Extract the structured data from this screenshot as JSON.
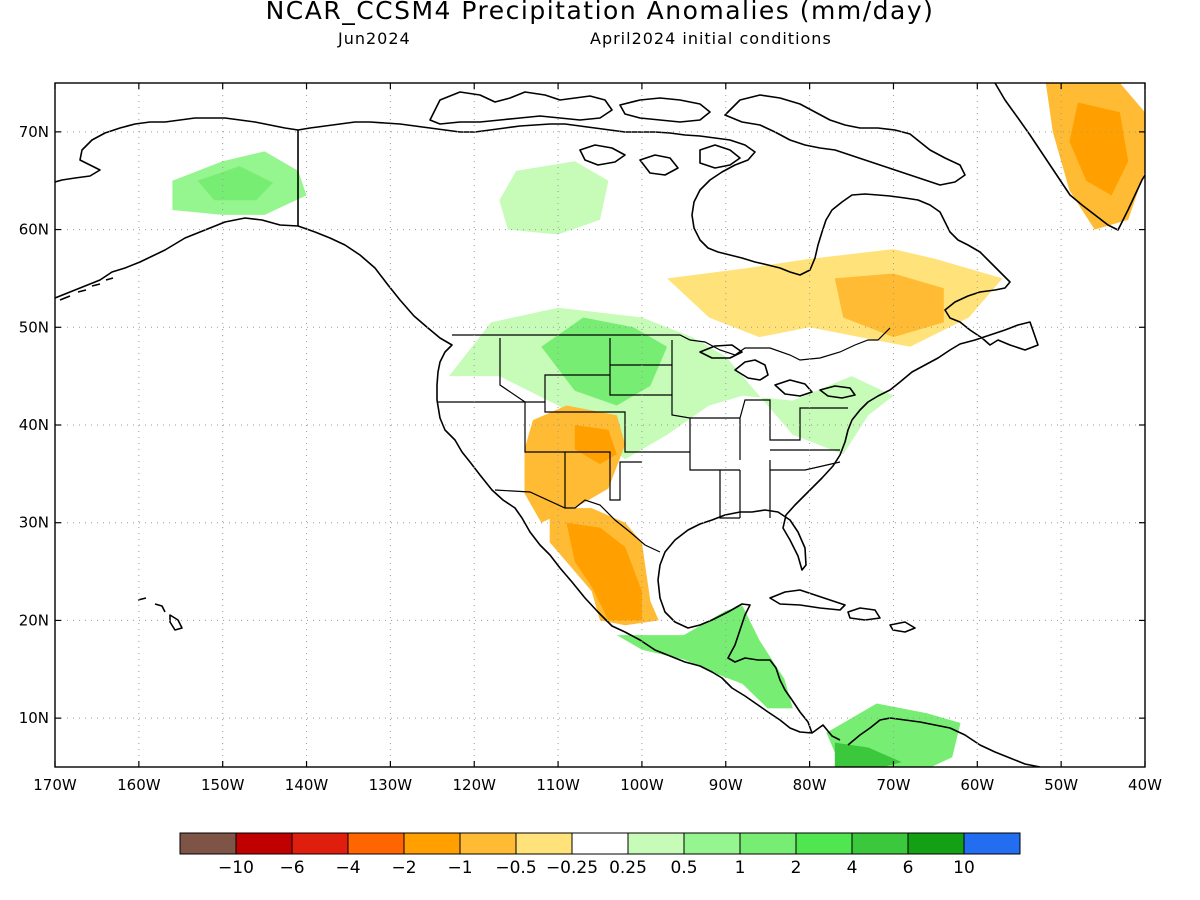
{
  "title": "NCAR_CCSM4 Precipitation Anomalies (mm/day)",
  "target_month": "Jun2024",
  "init_conditions": "April2024 initial conditions",
  "axes": {
    "lon_labels": [
      "170W",
      "160W",
      "150W",
      "140W",
      "130W",
      "120W",
      "110W",
      "100W",
      "90W",
      "80W",
      "70W",
      "60W",
      "50W",
      "40W"
    ],
    "lon_values": [
      -170,
      -160,
      -150,
      -140,
      -130,
      -120,
      -110,
      -100,
      -90,
      -80,
      -70,
      -60,
      -50,
      -40
    ],
    "lat_labels": [
      "10N",
      "20N",
      "30N",
      "40N",
      "50N",
      "60N",
      "70N"
    ],
    "lat_values": [
      10,
      20,
      30,
      40,
      50,
      60,
      70
    ],
    "lon_range": [
      -170,
      -40
    ],
    "lat_range": [
      5,
      75
    ],
    "grid": "dotted"
  },
  "colorbar": {
    "colors": [
      "#7d5446",
      "#c00000",
      "#e01e0e",
      "#ff6600",
      "#ff9f00",
      "#ffbb33",
      "#ffe37a",
      "#ffffff",
      "#c6fbb8",
      "#95f58e",
      "#78ed73",
      "#50e650",
      "#3cc83c",
      "#14a014",
      "#236ef0"
    ],
    "labels": [
      "−10",
      "−6",
      "−4",
      "−2",
      "−1",
      "−0.5",
      "−0.25",
      "0.25",
      "0.5",
      "1",
      "2",
      "4",
      "6",
      "10"
    ]
  },
  "anomaly_regions": [
    {
      "name": "Alaska interior wet",
      "level": "0.5 to 1",
      "color": "#95f58e",
      "lonlat": [
        [
          -156,
          65
        ],
        [
          -150,
          67
        ],
        [
          -145,
          68
        ],
        [
          -141,
          66
        ],
        [
          -140,
          63.5
        ],
        [
          -145,
          61.5
        ],
        [
          -150,
          61.5
        ],
        [
          -156,
          62
        ]
      ]
    },
    {
      "name": "Alaska interior wet core",
      "level": "1 to 2",
      "color": "#78ed73",
      "lonlat": [
        [
          -153,
          65
        ],
        [
          -148,
          66.5
        ],
        [
          -144,
          64.8
        ],
        [
          -146,
          63
        ],
        [
          -151,
          63
        ]
      ]
    },
    {
      "name": "NW Territories wet",
      "level": "0.25 to 0.5",
      "color": "#c6fbb8",
      "lonlat": [
        [
          -115,
          66
        ],
        [
          -108,
          67
        ],
        [
          -104,
          65
        ],
        [
          -105,
          61
        ],
        [
          -110,
          59.5
        ],
        [
          -116,
          60
        ],
        [
          -117,
          63
        ]
      ]
    },
    {
      "name": "Northern Plains wet",
      "level": "0.25 to 0.5",
      "color": "#c6fbb8",
      "lonlat": [
        [
          -123,
          45
        ],
        [
          -118,
          50.5
        ],
        [
          -110,
          52
        ],
        [
          -100,
          51
        ],
        [
          -94,
          49
        ],
        [
          -90,
          47
        ],
        [
          -86,
          43
        ],
        [
          -82,
          39
        ],
        [
          -76,
          37
        ],
        [
          -73,
          41
        ],
        [
          -70,
          43
        ],
        [
          -75,
          45
        ],
        [
          -82,
          42.5
        ],
        [
          -88,
          43
        ],
        [
          -92,
          42
        ],
        [
          -97,
          39
        ],
        [
          -102,
          36.5
        ],
        [
          -105,
          38.5
        ],
        [
          -110,
          42
        ],
        [
          -117,
          45
        ]
      ]
    },
    {
      "name": "Northern Plains wet core",
      "level": "1 to 2",
      "color": "#78ed73",
      "lonlat": [
        [
          -112,
          48
        ],
        [
          -107,
          51
        ],
        [
          -101,
          50
        ],
        [
          -97,
          48
        ],
        [
          -99,
          44
        ],
        [
          -103,
          42
        ],
        [
          -108,
          43.5
        ]
      ]
    },
    {
      "name": "Southwest US dry",
      "level": "-0.5 to -1",
      "color": "#ffbb33",
      "lonlat": [
        [
          -113,
          40.5
        ],
        [
          -109,
          42
        ],
        [
          -103,
          41
        ],
        [
          -102,
          38
        ],
        [
          -104,
          33.5
        ],
        [
          -107,
          32
        ],
        [
          -112,
          30
        ],
        [
          -114,
          33
        ],
        [
          -114,
          37.5
        ]
      ]
    },
    {
      "name": "Southwest US dry core",
      "level": "-1 to -2",
      "color": "#ff9f00",
      "lonlat": [
        [
          -108,
          40
        ],
        [
          -104,
          39.5
        ],
        [
          -103,
          37
        ],
        [
          -105,
          36
        ],
        [
          -108,
          37.5
        ]
      ]
    },
    {
      "name": "Mexico dry",
      "level": "-0.5 to -1",
      "color": "#ffbb33",
      "lonlat": [
        [
          -111,
          31.5
        ],
        [
          -106,
          31.5
        ],
        [
          -102,
          30
        ],
        [
          -100,
          28
        ],
        [
          -99,
          22
        ],
        [
          -98,
          20
        ],
        [
          -102,
          19.5
        ],
        [
          -105,
          20
        ],
        [
          -106,
          23
        ],
        [
          -109,
          26
        ],
        [
          -111,
          28
        ]
      ]
    },
    {
      "name": "Mexico dry core",
      "level": "-1 to -2",
      "color": "#ff9f00",
      "lonlat": [
        [
          -109,
          30
        ],
        [
          -105,
          29.5
        ],
        [
          -102,
          27.5
        ],
        [
          -100,
          23
        ],
        [
          -100,
          20
        ],
        [
          -104,
          20
        ],
        [
          -106,
          23.5
        ],
        [
          -108,
          26
        ]
      ]
    },
    {
      "name": "Central America wet",
      "level": "1 to 2",
      "color": "#78ed73",
      "lonlat": [
        [
          -103,
          18.5
        ],
        [
          -95,
          18.5
        ],
        [
          -90,
          21
        ],
        [
          -88,
          21.5
        ],
        [
          -86,
          18
        ],
        [
          -83,
          14
        ],
        [
          -82,
          11
        ],
        [
          -85,
          11
        ],
        [
          -88,
          13.5
        ],
        [
          -91,
          14.5
        ],
        [
          -95,
          16
        ],
        [
          -100,
          17
        ]
      ]
    },
    {
      "name": "Quebec/Labrador dry",
      "level": "-0.25 to -0.5",
      "color": "#ffe37a",
      "lonlat": [
        [
          -97,
          55
        ],
        [
          -88,
          56
        ],
        [
          -80,
          57
        ],
        [
          -70,
          58
        ],
        [
          -65,
          57
        ],
        [
          -57,
          55
        ],
        [
          -61,
          51
        ],
        [
          -68,
          48
        ],
        [
          -74,
          49
        ],
        [
          -80,
          50
        ],
        [
          -86,
          49
        ],
        [
          -92,
          51
        ]
      ]
    },
    {
      "name": "Labrador dry core",
      "level": "-0.5 to -1",
      "color": "#ffbb33",
      "lonlat": [
        [
          -77,
          55
        ],
        [
          -70,
          55.5
        ],
        [
          -64,
          54
        ],
        [
          -64,
          50.5
        ],
        [
          -70,
          49
        ],
        [
          -76,
          51
        ]
      ]
    },
    {
      "name": "Greenland dry",
      "level": "-0.5 to -1",
      "color": "#ffbb33",
      "lonlat": [
        [
          -52,
          76
        ],
        [
          -44,
          76
        ],
        [
          -40,
          72
        ],
        [
          -40,
          66
        ],
        [
          -42,
          61
        ],
        [
          -46,
          60
        ],
        [
          -49,
          64
        ],
        [
          -51,
          70
        ]
      ]
    },
    {
      "name": "Greenland dry core",
      "level": "-1 to -2",
      "color": "#ff9f00",
      "lonlat": [
        [
          -48,
          73
        ],
        [
          -43,
          72
        ],
        [
          -42,
          67
        ],
        [
          -44,
          63.5
        ],
        [
          -47,
          65
        ],
        [
          -49,
          69
        ]
      ]
    },
    {
      "name": "Venezuela/Colombia wet",
      "level": "1 to 2",
      "color": "#78ed73",
      "lonlat": [
        [
          -78,
          8.5
        ],
        [
          -72,
          11.5
        ],
        [
          -66,
          10.5
        ],
        [
          -62,
          9.5
        ],
        [
          -63,
          6
        ],
        [
          -68,
          4
        ],
        [
          -76,
          4.5
        ]
      ]
    },
    {
      "name": "Colombia wet core",
      "level": "4 to 6",
      "color": "#3cc83c",
      "lonlat": [
        [
          -77,
          7.5
        ],
        [
          -73,
          7
        ],
        [
          -69,
          5.5
        ],
        [
          -73,
          4.6
        ],
        [
          -77,
          5
        ]
      ]
    }
  ]
}
